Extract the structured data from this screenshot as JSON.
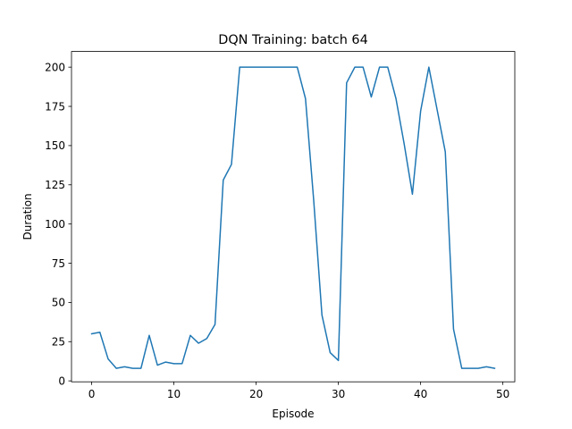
{
  "chart_data": {
    "type": "line",
    "title": "DQN Training: batch 64",
    "xlabel": "Episode",
    "ylabel": "Duration",
    "xlim": [
      -2.45,
      51.45
    ],
    "ylim": [
      -0.6,
      210.0
    ],
    "grid": false,
    "x_ticks": [
      0,
      10,
      20,
      30,
      40,
      50
    ],
    "y_ticks": [
      0,
      25,
      50,
      75,
      100,
      125,
      150,
      175,
      200
    ],
    "series": [
      {
        "color": "#1f77b4",
        "x": [
          0,
          1,
          2,
          3,
          4,
          5,
          6,
          7,
          8,
          9,
          10,
          11,
          12,
          13,
          14,
          15,
          16,
          17,
          18,
          19,
          20,
          21,
          22,
          23,
          24,
          25,
          26,
          27,
          28,
          29,
          30,
          31,
          32,
          33,
          34,
          35,
          36,
          37,
          38,
          39,
          40,
          41,
          42,
          43,
          44,
          45,
          46,
          47,
          48,
          49
        ],
        "values": [
          30,
          31,
          14,
          8,
          9,
          8,
          8,
          29,
          10,
          12,
          11,
          11,
          29,
          24,
          27,
          36,
          128,
          138,
          200,
          200,
          200,
          200,
          200,
          200,
          200,
          200,
          180,
          115,
          42,
          18,
          13,
          190,
          200,
          200,
          181,
          200,
          200,
          180,
          151,
          119,
          172,
          200,
          173,
          146,
          33,
          8,
          8,
          8,
          9,
          8
        ]
      }
    ]
  }
}
